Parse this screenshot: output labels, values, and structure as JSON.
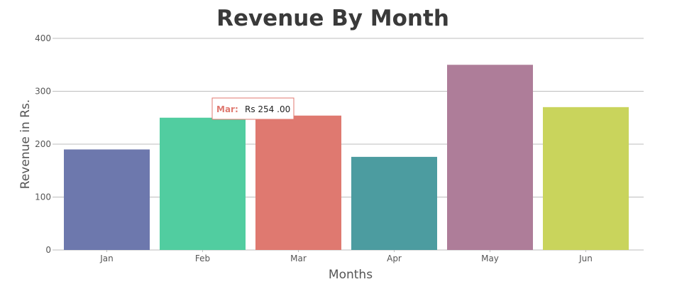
{
  "chart_data": {
    "type": "bar",
    "title": "Revenue By Month",
    "xlabel": "Months",
    "ylabel": "Revenue in Rs.",
    "categories": [
      "Jan",
      "Feb",
      "Mar",
      "Apr",
      "May",
      "Jun"
    ],
    "values": [
      190,
      250,
      254,
      176,
      350,
      270
    ],
    "colors": [
      "#6d78ad",
      "#51cda0",
      "#df7970",
      "#4c9ca0",
      "#ae7d99",
      "#c9d45c"
    ],
    "ylim": [
      0,
      400
    ],
    "yticks": [
      "0",
      "100",
      "200",
      "300",
      "400"
    ],
    "grid": true,
    "tooltip": {
      "category": "Mar",
      "label": "Mar:",
      "value": "Rs 254 .00",
      "label_color": "#df7970"
    }
  }
}
